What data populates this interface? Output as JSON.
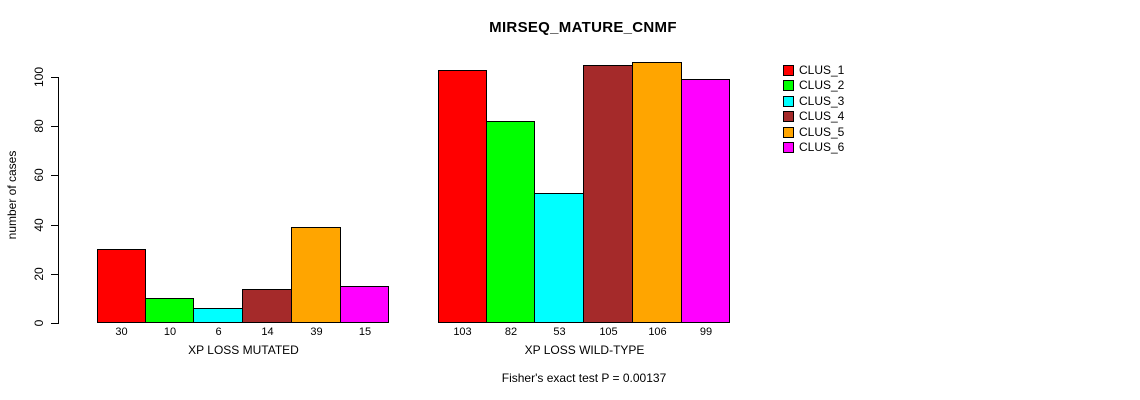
{
  "chart_data": {
    "type": "bar",
    "title": "MIRSEQ_MATURE_CNMF",
    "ylabel": "number of cases",
    "xlabel": "",
    "categories": [
      "XP LOSS MUTATED",
      "XP LOSS WILD-TYPE"
    ],
    "series": [
      {
        "name": "CLUS_1",
        "color": "#FF0000",
        "values": [
          30,
          103
        ]
      },
      {
        "name": "CLUS_2",
        "color": "#00FF00",
        "values": [
          10,
          82
        ]
      },
      {
        "name": "CLUS_3",
        "color": "#00FFFF",
        "values": [
          6,
          53
        ]
      },
      {
        "name": "CLUS_4",
        "color": "#A52A2A",
        "values": [
          14,
          105
        ]
      },
      {
        "name": "CLUS_5",
        "color": "#FFA500",
        "values": [
          39,
          106
        ]
      },
      {
        "name": "CLUS_6",
        "color": "#FF00FF",
        "values": [
          15,
          99
        ]
      }
    ],
    "ylim": [
      0,
      100
    ],
    "yticks": [
      0,
      20,
      40,
      60,
      80,
      100
    ],
    "grid": false,
    "bar_value_labels_shown": true,
    "legend_position": "right",
    "annotation": "Fisher's exact test P = 0.00137",
    "colors": {
      "background": "#FFFFFF",
      "axis": "#000000",
      "text": "#000000"
    }
  }
}
